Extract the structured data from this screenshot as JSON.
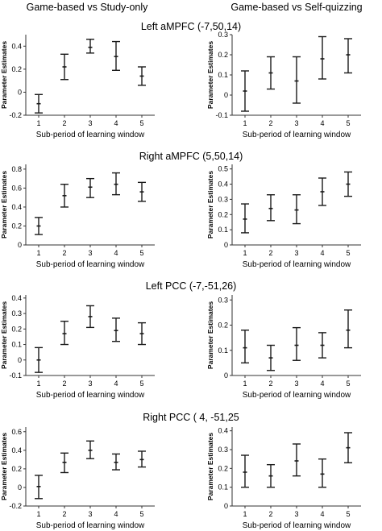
{
  "column_titles": [
    "Game-based vs Study-only",
    "Game-based vs Self-quizzing"
  ],
  "x_label": "Sub-period of learning window",
  "y_label": "Parameter Estimates",
  "chart_data": [
    {
      "type": "errorbar",
      "region": "Left aMPFC (-7,50,14)",
      "comparison": "Game-based vs Study-only",
      "x": [
        1,
        2,
        3,
        4,
        5
      ],
      "ylim": [
        -0.2,
        0.5
      ],
      "yticks": [
        -0.2,
        0,
        0.2,
        0.4
      ],
      "ytick_labels": [
        "-0.2",
        "0",
        "0.2",
        "0.4"
      ],
      "mean": [
        -0.1,
        0.22,
        0.39,
        0.31,
        0.14
      ],
      "lower": [
        -0.18,
        0.11,
        0.34,
        0.19,
        0.06
      ],
      "upper": [
        -0.02,
        0.33,
        0.46,
        0.44,
        0.22
      ]
    },
    {
      "type": "errorbar",
      "region": "Left aMPFC (-7,50,14)",
      "comparison": "Game-based vs Self-quizzing",
      "x": [
        1,
        2,
        3,
        4,
        5
      ],
      "ylim": [
        -0.1,
        0.3
      ],
      "yticks": [
        -0.1,
        0,
        0.1,
        0.2,
        0.3
      ],
      "ytick_labels": [
        "-0.1",
        "0",
        "0.1",
        "0.2",
        "0.3"
      ],
      "mean": [
        0.02,
        0.11,
        0.07,
        0.18,
        0.2
      ],
      "lower": [
        -0.08,
        0.03,
        -0.04,
        0.08,
        0.11
      ],
      "upper": [
        0.12,
        0.19,
        0.19,
        0.29,
        0.28
      ]
    },
    {
      "type": "errorbar",
      "region": "Right aMPFC (5,50,14)",
      "comparison": "Game-based vs Study-only",
      "x": [
        1,
        2,
        3,
        4,
        5
      ],
      "ylim": [
        0,
        0.85
      ],
      "yticks": [
        0,
        0.2,
        0.4,
        0.6,
        0.8
      ],
      "ytick_labels": [
        "0",
        "0.2",
        "0.4",
        "0.6",
        "0.8"
      ],
      "mean": [
        0.2,
        0.52,
        0.61,
        0.64,
        0.56
      ],
      "lower": [
        0.11,
        0.4,
        0.5,
        0.53,
        0.46
      ],
      "upper": [
        0.29,
        0.64,
        0.7,
        0.76,
        0.66
      ]
    },
    {
      "type": "errorbar",
      "region": "Right aMPFC (5,50,14)",
      "comparison": "Game-based vs Self-quizzing",
      "x": [
        1,
        2,
        3,
        4,
        5
      ],
      "ylim": [
        0,
        0.53
      ],
      "yticks": [
        0,
        0.1,
        0.2,
        0.3,
        0.4,
        0.5
      ],
      "ytick_labels": [
        "0",
        "0.1",
        "0.2",
        "0.3",
        "0.4",
        "0.5"
      ],
      "mean": [
        0.17,
        0.24,
        0.23,
        0.35,
        0.4
      ],
      "lower": [
        0.08,
        0.16,
        0.14,
        0.26,
        0.32
      ],
      "upper": [
        0.27,
        0.33,
        0.33,
        0.44,
        0.48
      ]
    },
    {
      "type": "errorbar",
      "region": "Left PCC (-7,-51,26)",
      "comparison": "Game-based vs Study-only",
      "x": [
        1,
        2,
        3,
        4,
        5
      ],
      "ylim": [
        -0.1,
        0.42
      ],
      "yticks": [
        -0.1,
        0,
        0.1,
        0.2,
        0.3,
        0.4
      ],
      "ytick_labels": [
        "-0.1",
        "0",
        "0.1",
        "0.2",
        "0.3",
        "0.4"
      ],
      "mean": [
        0.0,
        0.17,
        0.28,
        0.19,
        0.17
      ],
      "lower": [
        -0.08,
        0.1,
        0.21,
        0.12,
        0.1
      ],
      "upper": [
        0.08,
        0.25,
        0.35,
        0.27,
        0.24
      ]
    },
    {
      "type": "errorbar",
      "region": "Left PCC (-7,-51,26)",
      "comparison": "Game-based vs Self-quizzing",
      "x": [
        1,
        2,
        3,
        4,
        5
      ],
      "ylim": [
        0,
        0.32
      ],
      "yticks": [
        0,
        0.1,
        0.2,
        0.3
      ],
      "ytick_labels": [
        "0",
        "0.1",
        "0.2",
        "0.3"
      ],
      "mean": [
        0.11,
        0.07,
        0.12,
        0.12,
        0.18
      ],
      "lower": [
        0.05,
        0.02,
        0.06,
        0.07,
        0.11
      ],
      "upper": [
        0.18,
        0.12,
        0.19,
        0.17,
        0.26
      ]
    },
    {
      "type": "errorbar",
      "region": "Right PCC ( 4, -51,25",
      "comparison": "Game-based vs Study-only",
      "x": [
        1,
        2,
        3,
        4,
        5
      ],
      "ylim": [
        -0.2,
        0.65
      ],
      "yticks": [
        -0.2,
        0,
        0.2,
        0.4,
        0.6
      ],
      "ytick_labels": [
        "-0.2",
        "0",
        "0.2",
        "0.4",
        "0.6"
      ],
      "mean": [
        0.01,
        0.27,
        0.4,
        0.27,
        0.3
      ],
      "lower": [
        -0.12,
        0.16,
        0.31,
        0.19,
        0.22
      ],
      "upper": [
        0.13,
        0.37,
        0.5,
        0.36,
        0.39
      ]
    },
    {
      "type": "errorbar",
      "region": "Right PCC ( 4, -51,25",
      "comparison": "Game-based vs Self-quizzing",
      "x": [
        1,
        2,
        3,
        4,
        5
      ],
      "ylim": [
        0,
        0.42
      ],
      "yticks": [
        0,
        0.1,
        0.2,
        0.3,
        0.4
      ],
      "ytick_labels": [
        "0",
        "0.1",
        "0.2",
        "0.3",
        "0.4"
      ],
      "mean": [
        0.18,
        0.16,
        0.24,
        0.17,
        0.31
      ],
      "lower": [
        0.1,
        0.1,
        0.16,
        0.1,
        0.23
      ],
      "upper": [
        0.27,
        0.22,
        0.33,
        0.25,
        0.39
      ]
    }
  ]
}
